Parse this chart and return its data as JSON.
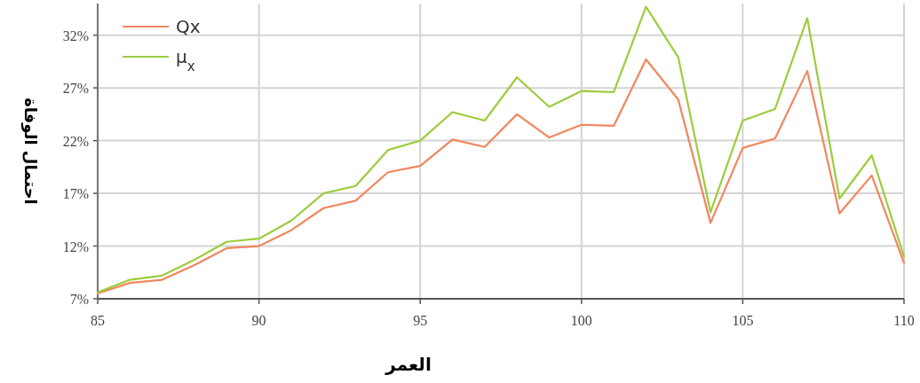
{
  "chart_data": {
    "type": "line",
    "xlabel": "العمر",
    "ylabel": "احتمال الوفاة",
    "x": [
      85,
      86,
      87,
      88,
      89,
      90,
      91,
      92,
      93,
      94,
      95,
      96,
      97,
      98,
      99,
      100,
      101,
      102,
      103,
      104,
      105,
      106,
      107,
      108,
      109,
      110
    ],
    "series": [
      {
        "name": "Qx",
        "color": "#f2865e",
        "values": [
          7.5,
          8.5,
          8.8,
          10.2,
          11.8,
          12.0,
          13.5,
          15.6,
          16.3,
          19.0,
          19.6,
          22.1,
          21.4,
          24.5,
          22.3,
          23.5,
          23.4,
          29.7,
          25.9,
          14.2,
          21.3,
          22.2,
          28.6,
          15.1,
          18.7,
          10.4
        ]
      },
      {
        "name": "μ$_{x}$",
        "color": "#9ccc3c",
        "values": [
          7.6,
          8.8,
          9.2,
          10.7,
          12.4,
          12.7,
          14.4,
          17.0,
          17.7,
          21.1,
          22.0,
          24.7,
          23.9,
          28.0,
          25.2,
          26.7,
          26.6,
          34.7,
          29.9,
          15.2,
          23.9,
          25.0,
          33.6,
          16.5,
          20.6,
          11.0
        ]
      }
    ],
    "xlim": [
      85,
      110
    ],
    "xticks": [
      85,
      90,
      95,
      100,
      105,
      110
    ],
    "ylim": [
      7,
      35
    ],
    "yticks": [
      {
        "value": 7,
        "label": "7%"
      },
      {
        "value": 12,
        "label": "12%"
      },
      {
        "value": 17,
        "label": "17%"
      },
      {
        "value": 22,
        "label": "22%"
      },
      {
        "value": 27,
        "label": "27%"
      },
      {
        "value": 32,
        "label": "32%"
      }
    ],
    "grid": true,
    "legend": "top left",
    "marker": "none",
    "line_style": "solid"
  }
}
